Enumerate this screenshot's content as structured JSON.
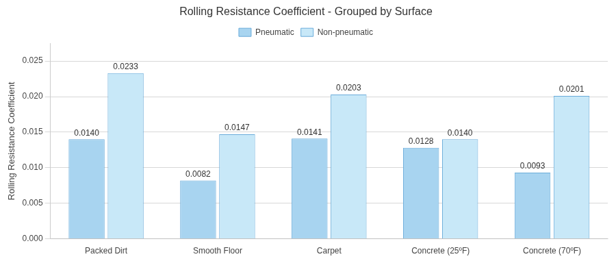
{
  "chart_data": {
    "type": "bar",
    "title": "Rolling Resistance Coefficient - Grouped by Surface",
    "ylabel": "Rolling Resistance Coefficient",
    "categories": [
      "Packed Dirt",
      "Smooth Floor",
      "Carpet",
      "Concrete (25ºF)",
      "Concrete (70ºF)"
    ],
    "series": [
      {
        "name": "Pneumatic",
        "color": "#a8d4f0",
        "values": [
          0.014,
          0.0082,
          0.0141,
          0.0128,
          0.0093
        ],
        "value_labels": [
          "0.0140",
          "0.0082",
          "0.0141",
          "0.0128",
          "0.0093"
        ]
      },
      {
        "name": "Non-pneumatic",
        "color": "#c8e8f8",
        "values": [
          0.0233,
          0.0147,
          0.0203,
          0.014,
          0.0201
        ],
        "value_labels": [
          "0.0233",
          "0.0147",
          "0.0203",
          "0.0140",
          "0.0201"
        ]
      }
    ],
    "ylim": [
      0,
      0.0275
    ],
    "yticks": [
      {
        "value": 0,
        "label": "0.000"
      },
      0.005,
      {
        "value": 0.01,
        "label": "0.010"
      },
      0.015,
      {
        "value": 0.02,
        "label": "0.020"
      },
      0.025
    ],
    "grid": true,
    "legend": "top",
    "data_labels": true
  }
}
